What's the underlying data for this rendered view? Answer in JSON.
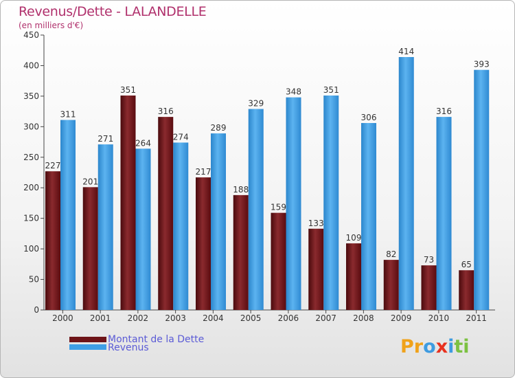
{
  "title": "Revenus/Dette - LALANDELLE",
  "subtitle": "(en milliers d'€)",
  "logo_text": "Proxiti",
  "colors": {
    "title": "#b0306c",
    "dette": "#6e1418",
    "revenus": "#3f9fe6",
    "legend_text": "#5b5bd6"
  },
  "chart_data": {
    "type": "bar",
    "title": "Revenus/Dette - LALANDELLE",
    "subtitle": "(en milliers d'€)",
    "categories": [
      "2000",
      "2001",
      "2002",
      "2003",
      "2004",
      "2005",
      "2006",
      "2007",
      "2008",
      "2009",
      "2010",
      "2011"
    ],
    "series": [
      {
        "name": "Montant de la Dette",
        "values": [
          227,
          201,
          351,
          316,
          217,
          188,
          159,
          133,
          109,
          82,
          73,
          65
        ]
      },
      {
        "name": "Revenus",
        "values": [
          311,
          271,
          264,
          274,
          289,
          329,
          348,
          351,
          306,
          414,
          316,
          393
        ]
      }
    ],
    "ylim": [
      0,
      450
    ],
    "yticks": [
      0,
      50,
      100,
      150,
      200,
      250,
      300,
      350,
      400,
      450
    ],
    "grid": false,
    "legend_position": "bottom-left"
  }
}
